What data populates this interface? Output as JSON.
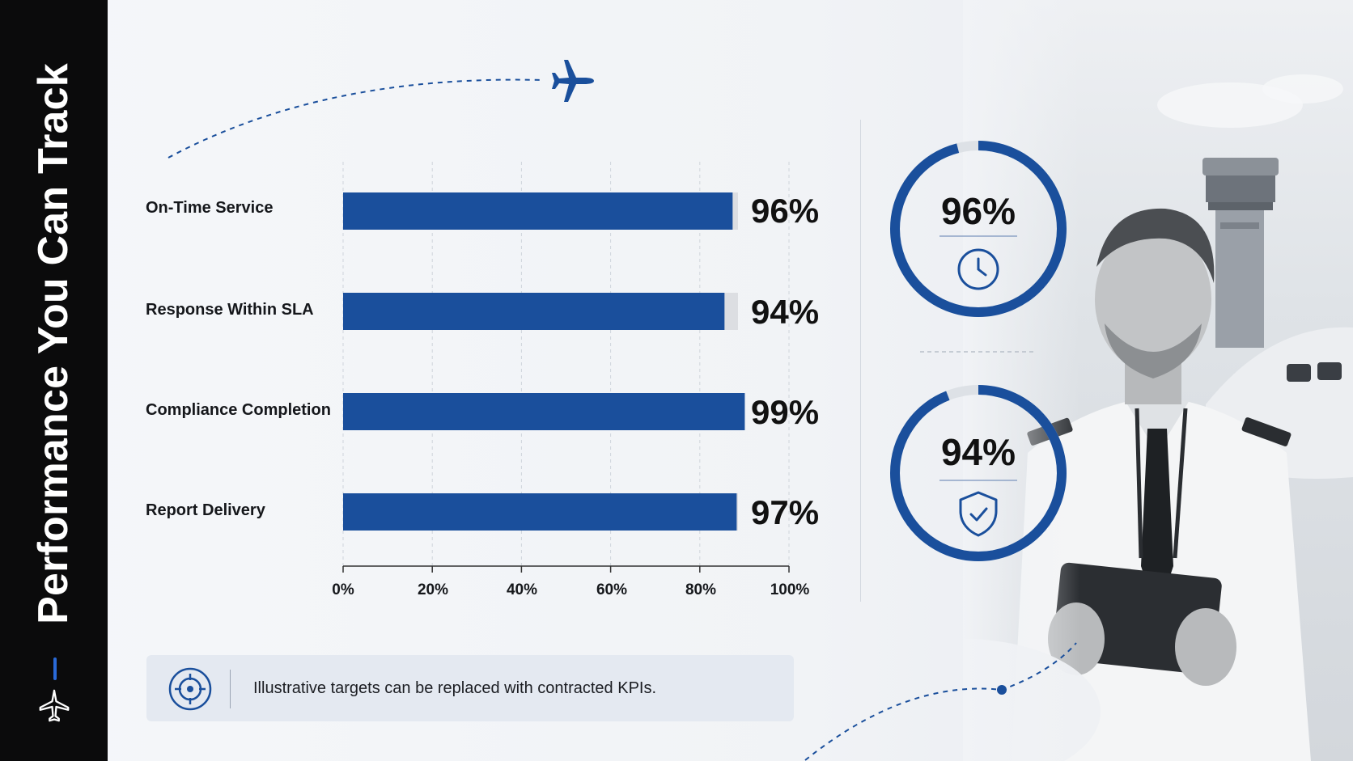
{
  "sidebar": {
    "title": "Performance You Can Track",
    "icon": "airplane-icon"
  },
  "chart_data": {
    "type": "bar",
    "orientation": "horizontal",
    "categories": [
      "On-Time Service",
      "Response Within SLA",
      "Compliance Completion",
      "Report Delivery"
    ],
    "values": [
      96,
      94,
      99,
      97
    ],
    "value_labels": [
      "96%",
      "94%",
      "99%",
      "97%"
    ],
    "xlim": [
      0,
      100
    ],
    "x_ticks": [
      "0%",
      "20%",
      "40%",
      "60%",
      "80%",
      "100%"
    ],
    "bar_color": "#1a4f9c",
    "track_color": "#dcdee2",
    "grid": true
  },
  "kpi_rings": [
    {
      "value": 96,
      "label": "96%",
      "icon": "clock-icon"
    },
    {
      "value": 94,
      "label": "94%",
      "icon": "shield-check-icon"
    }
  ],
  "note": {
    "text": "Illustrative targets can be replaced with contracted KPIs.",
    "icon": "target-icon"
  },
  "colors": {
    "accent": "#1a4f9c",
    "sidebar": "#0b0b0c",
    "note_bg": "#e4e9f1"
  }
}
